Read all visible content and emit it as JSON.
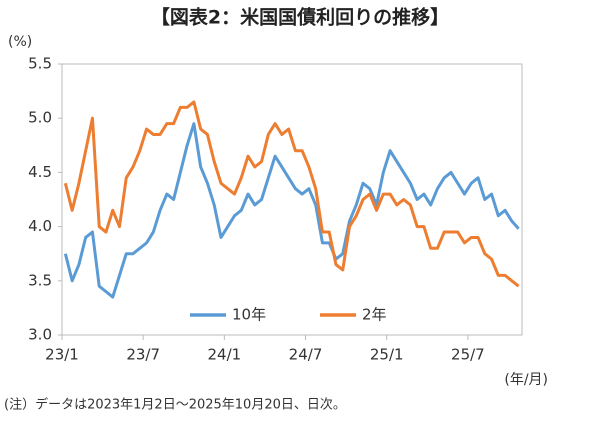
{
  "chart_data": {
    "type": "line",
    "title": "【図表2：米国国債利回りの推移】",
    "y_unit": "(%)",
    "x_unit": "(年/月)",
    "note": "(注）データは2023年1月2日～2025年10月20日、日次。",
    "categories": [
      "23/1",
      null,
      null,
      null,
      null,
      null,
      null,
      null,
      null,
      null,
      null,
      null,
      "23/7",
      null,
      null,
      null,
      null,
      null,
      null,
      null,
      null,
      null,
      null,
      null,
      "24/1",
      null,
      null,
      null,
      null,
      null,
      null,
      null,
      null,
      null,
      null,
      null,
      "24/7",
      null,
      null,
      null,
      null,
      null,
      null,
      null,
      null,
      null,
      null,
      null,
      "25/1",
      null,
      null,
      null,
      null,
      null,
      null,
      null,
      null,
      null,
      null,
      null,
      "25/7",
      null,
      null,
      null,
      null,
      null,
      null,
      null
    ],
    "series": [
      {
        "name": "10年",
        "color": "#5b9bd5",
        "values": [
          3.75,
          3.5,
          3.65,
          3.9,
          3.95,
          3.45,
          3.4,
          3.35,
          3.55,
          3.75,
          3.75,
          3.8,
          3.85,
          3.95,
          4.15,
          4.3,
          4.25,
          4.5,
          4.75,
          4.95,
          4.55,
          4.4,
          4.2,
          3.9,
          4.0,
          4.1,
          4.15,
          4.3,
          4.2,
          4.25,
          4.45,
          4.65,
          4.55,
          4.45,
          4.35,
          4.3,
          4.35,
          4.2,
          3.85,
          3.85,
          3.7,
          3.75,
          4.05,
          4.2,
          4.4,
          4.35,
          4.2,
          4.5,
          4.7,
          4.6,
          4.5,
          4.4,
          4.25,
          4.3,
          4.2,
          4.35,
          4.45,
          4.5,
          4.4,
          4.3,
          4.4,
          4.45,
          4.25,
          4.3,
          4.1,
          4.15,
          4.05,
          3.98
        ]
      },
      {
        "name": "2年",
        "color": "#ed7d31",
        "values": [
          4.4,
          4.15,
          4.4,
          4.7,
          5.0,
          4.0,
          3.95,
          4.15,
          4.0,
          4.45,
          4.55,
          4.7,
          4.9,
          4.85,
          4.85,
          4.95,
          4.95,
          5.1,
          5.1,
          5.15,
          4.9,
          4.85,
          4.6,
          4.4,
          4.35,
          4.3,
          4.45,
          4.65,
          4.55,
          4.6,
          4.85,
          4.95,
          4.85,
          4.9,
          4.7,
          4.7,
          4.55,
          4.35,
          3.95,
          3.95,
          3.65,
          3.6,
          4.0,
          4.1,
          4.25,
          4.3,
          4.15,
          4.3,
          4.3,
          4.2,
          4.25,
          4.2,
          4.0,
          4.0,
          3.8,
          3.8,
          3.95,
          3.95,
          3.95,
          3.85,
          3.9,
          3.9,
          3.75,
          3.7,
          3.55,
          3.55,
          3.5,
          3.45
        ]
      }
    ],
    "ylim": [
      3.0,
      5.5
    ],
    "yticks": [
      {
        "value": 3,
        "label": "3.0"
      },
      3.5,
      {
        "value": 4,
        "label": "4.0"
      },
      4.5,
      {
        "value": 5,
        "label": "5.0"
      },
      5.5
    ],
    "legend": "bottom"
  }
}
